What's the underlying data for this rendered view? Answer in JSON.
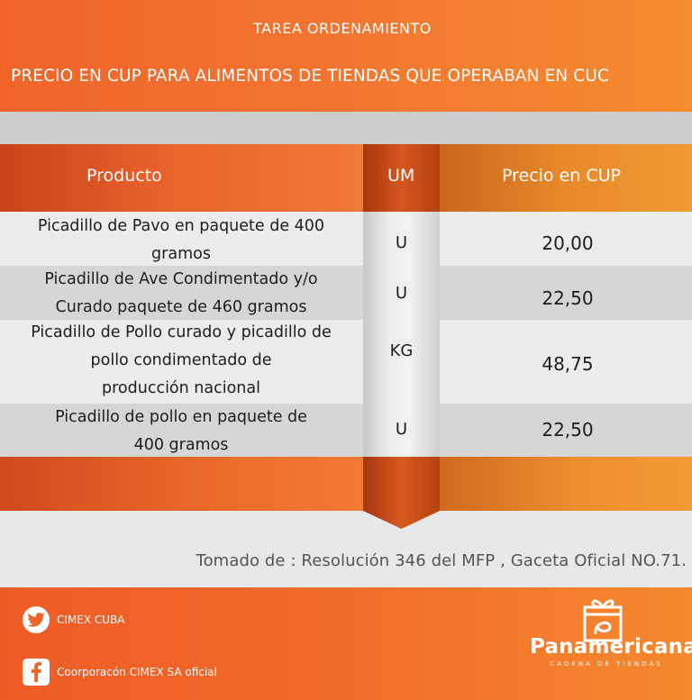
{
  "header": {
    "kicker": "TAREA  ORDENAMIENTO",
    "title": "PRECIO EN CUP PARA ALIMENTOS DE TIENDAS QUE OPERABAN EN CUC"
  },
  "table": {
    "columns": [
      "Producto",
      "UM",
      "Precio en CUP"
    ],
    "rows": [
      {
        "lines": [
          "Picadillo de Pavo en paquete de 400",
          "gramos"
        ],
        "um": "U",
        "price": "20,00"
      },
      {
        "lines": [
          "Picadillo de Ave Condimentado y/o",
          "Curado paquete de 460 gramos"
        ],
        "um": "U",
        "price": "22,50"
      },
      {
        "lines": [
          "Picadillo de Pollo curado y picadillo de",
          "pollo condimentado de",
          "producción nacional"
        ],
        "um": "KG",
        "price": "48,75"
      },
      {
        "lines": [
          "Picadillo de pollo en paquete de",
          "400 gramos"
        ],
        "um": "U",
        "price": "22,50"
      }
    ]
  },
  "source": "Tomado de : Resolución 346 del MFP , Gaceta Oficial  NO.71.",
  "footer": {
    "twitter": {
      "label": "CIMEX CUBA",
      "icon": "twitter-icon"
    },
    "facebook": {
      "label": "Coorporacón CIMEX SA oficial",
      "icon": "facebook-icon"
    },
    "brand": {
      "name": "Panamericana",
      "tagline": "CADENA DE TIENDAS"
    }
  },
  "colors": {
    "accent": "#f06a2b",
    "accent_light": "#f58c2f",
    "row_light": "#ececec",
    "row_dark": "#d6d6d6"
  }
}
